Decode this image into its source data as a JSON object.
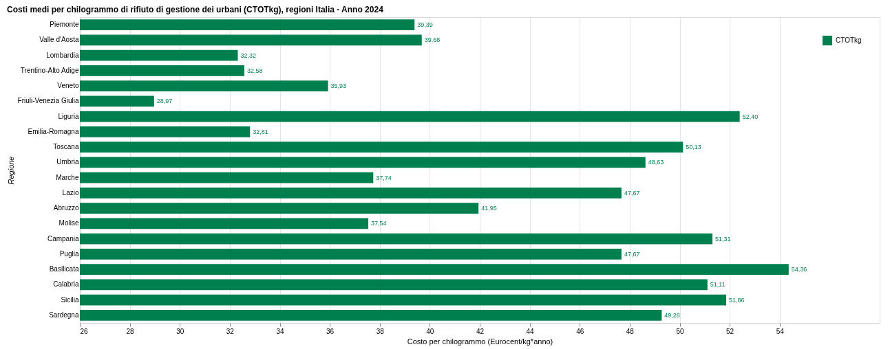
{
  "chart_data": {
    "type": "bar",
    "orientation": "horizontal",
    "title": "Costi medi per chilogrammo di rifiuto di gestione dei urbani (CTOTkg), regioni Italia - Anno 2024",
    "xlabel": "Costo per chilogrammo (Eurocent/kg*anno)",
    "ylabel": "Regione",
    "categories": [
      "Piemonte",
      "Valle d'Aosta",
      "Lombardia",
      "Trentino-Alto Adige",
      "Veneto",
      "Friuli-Venezia Giulia",
      "Liguria",
      "Emilia-Romagna",
      "Toscana",
      "Umbria",
      "Marche",
      "Lazio",
      "Abruzzo",
      "Molise",
      "Campania",
      "Puglia",
      "Basilicata",
      "Calabria",
      "Sicilia",
      "Sardegna"
    ],
    "series": [
      {
        "name": "CTOTkg",
        "color": "#007f4e",
        "values": [
          39.39,
          39.68,
          32.32,
          32.58,
          35.93,
          28.97,
          52.4,
          32.81,
          50.13,
          48.63,
          37.74,
          47.67,
          41.95,
          37.54,
          51.31,
          47.67,
          54.36,
          51.11,
          51.86,
          49.28
        ],
        "value_labels": [
          "39,39",
          "39,68",
          "32,32",
          "32,58",
          "35,93",
          "28,97",
          "52,40",
          "32,81",
          "50,13",
          "48,63",
          "37,74",
          "47,67",
          "41,95",
          "37,54",
          "51,31",
          "47,67",
          "54,36",
          "51,11",
          "51,86",
          "49,28"
        ]
      }
    ],
    "xlim": [
      26,
      58
    ],
    "xticks": [
      26,
      28,
      30,
      32,
      34,
      36,
      38,
      40,
      42,
      44,
      46,
      48,
      50,
      52,
      54
    ],
    "grid": "x",
    "legend": "top right"
  }
}
